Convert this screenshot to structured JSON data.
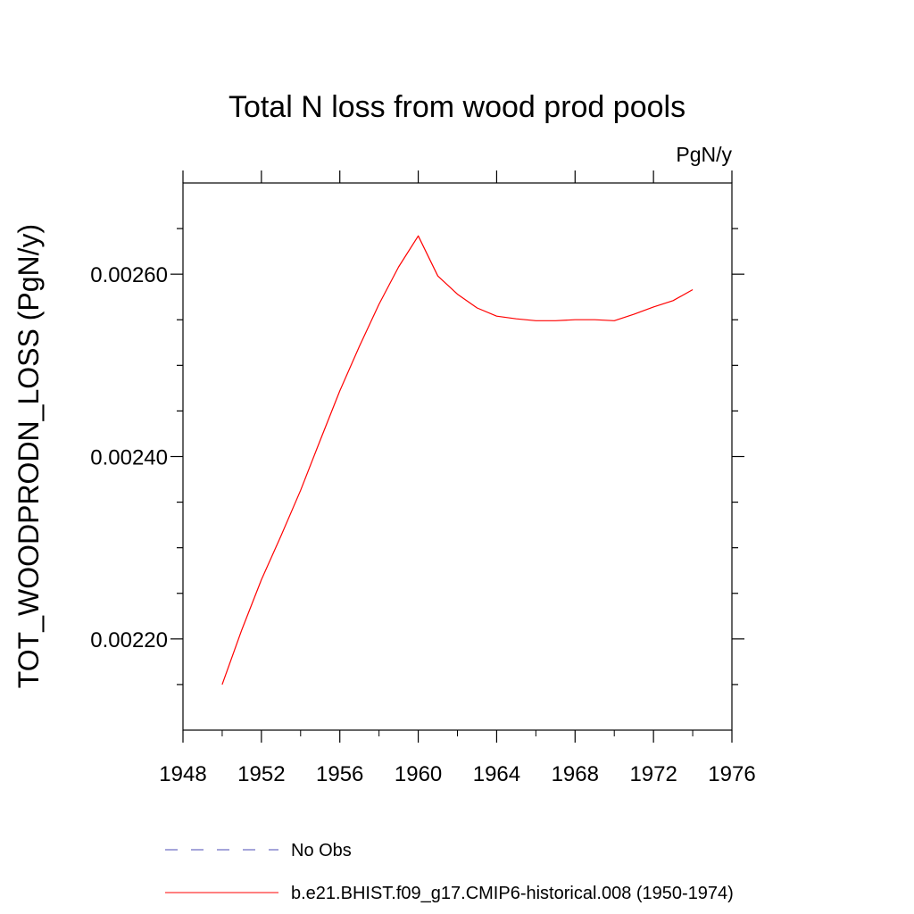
{
  "chart_data": {
    "type": "line",
    "title": "Total N loss from wood prod pools",
    "units_label": "PgN/y",
    "xlabel": "",
    "ylabel": "TOT_WOODPRODN_LOSS  (PgN/y)",
    "xlim": [
      1948,
      1976
    ],
    "ylim": [
      0.0021,
      0.0027
    ],
    "x_ticks": [
      1948,
      1952,
      1956,
      1960,
      1964,
      1968,
      1972,
      1976
    ],
    "x_tick_labels": [
      "1948",
      "1952",
      "1956",
      "1960",
      "1964",
      "1968",
      "1972",
      "1976"
    ],
    "y_ticks": [
      0.0022,
      0.0024,
      0.0026
    ],
    "y_tick_labels": [
      "0.00220",
      "0.00240",
      "0.00260"
    ],
    "grid": false,
    "legend_placement": "bottom",
    "series": [
      {
        "name": "b.e21.BHIST.f09_g17.CMIP6-historical.008 (1950-1974)",
        "color": "#ff0000",
        "style": "solid",
        "x": [
          1950,
          1951,
          1952,
          1953,
          1954,
          1955,
          1956,
          1957,
          1958,
          1959,
          1960,
          1961,
          1962,
          1963,
          1964,
          1965,
          1966,
          1967,
          1968,
          1969,
          1970,
          1971,
          1972,
          1973,
          1974
        ],
        "values": [
          0.00215,
          0.00221,
          0.002265,
          0.002313,
          0.002363,
          0.002418,
          0.002472,
          0.002521,
          0.002567,
          0.002608,
          0.002642,
          0.002598,
          0.002578,
          0.002563,
          0.002554,
          0.002551,
          0.002549,
          0.002549,
          0.00255,
          0.00255,
          0.002549,
          0.002556,
          0.002564,
          0.002571,
          0.002583
        ]
      }
    ],
    "legend": [
      {
        "label": "No Obs",
        "color": "#4b4bb4",
        "style": "dashed"
      },
      {
        "label": "b.e21.BHIST.f09_g17.CMIP6-historical.008 (1950-1974)",
        "color": "#ff0000",
        "style": "solid"
      }
    ]
  }
}
